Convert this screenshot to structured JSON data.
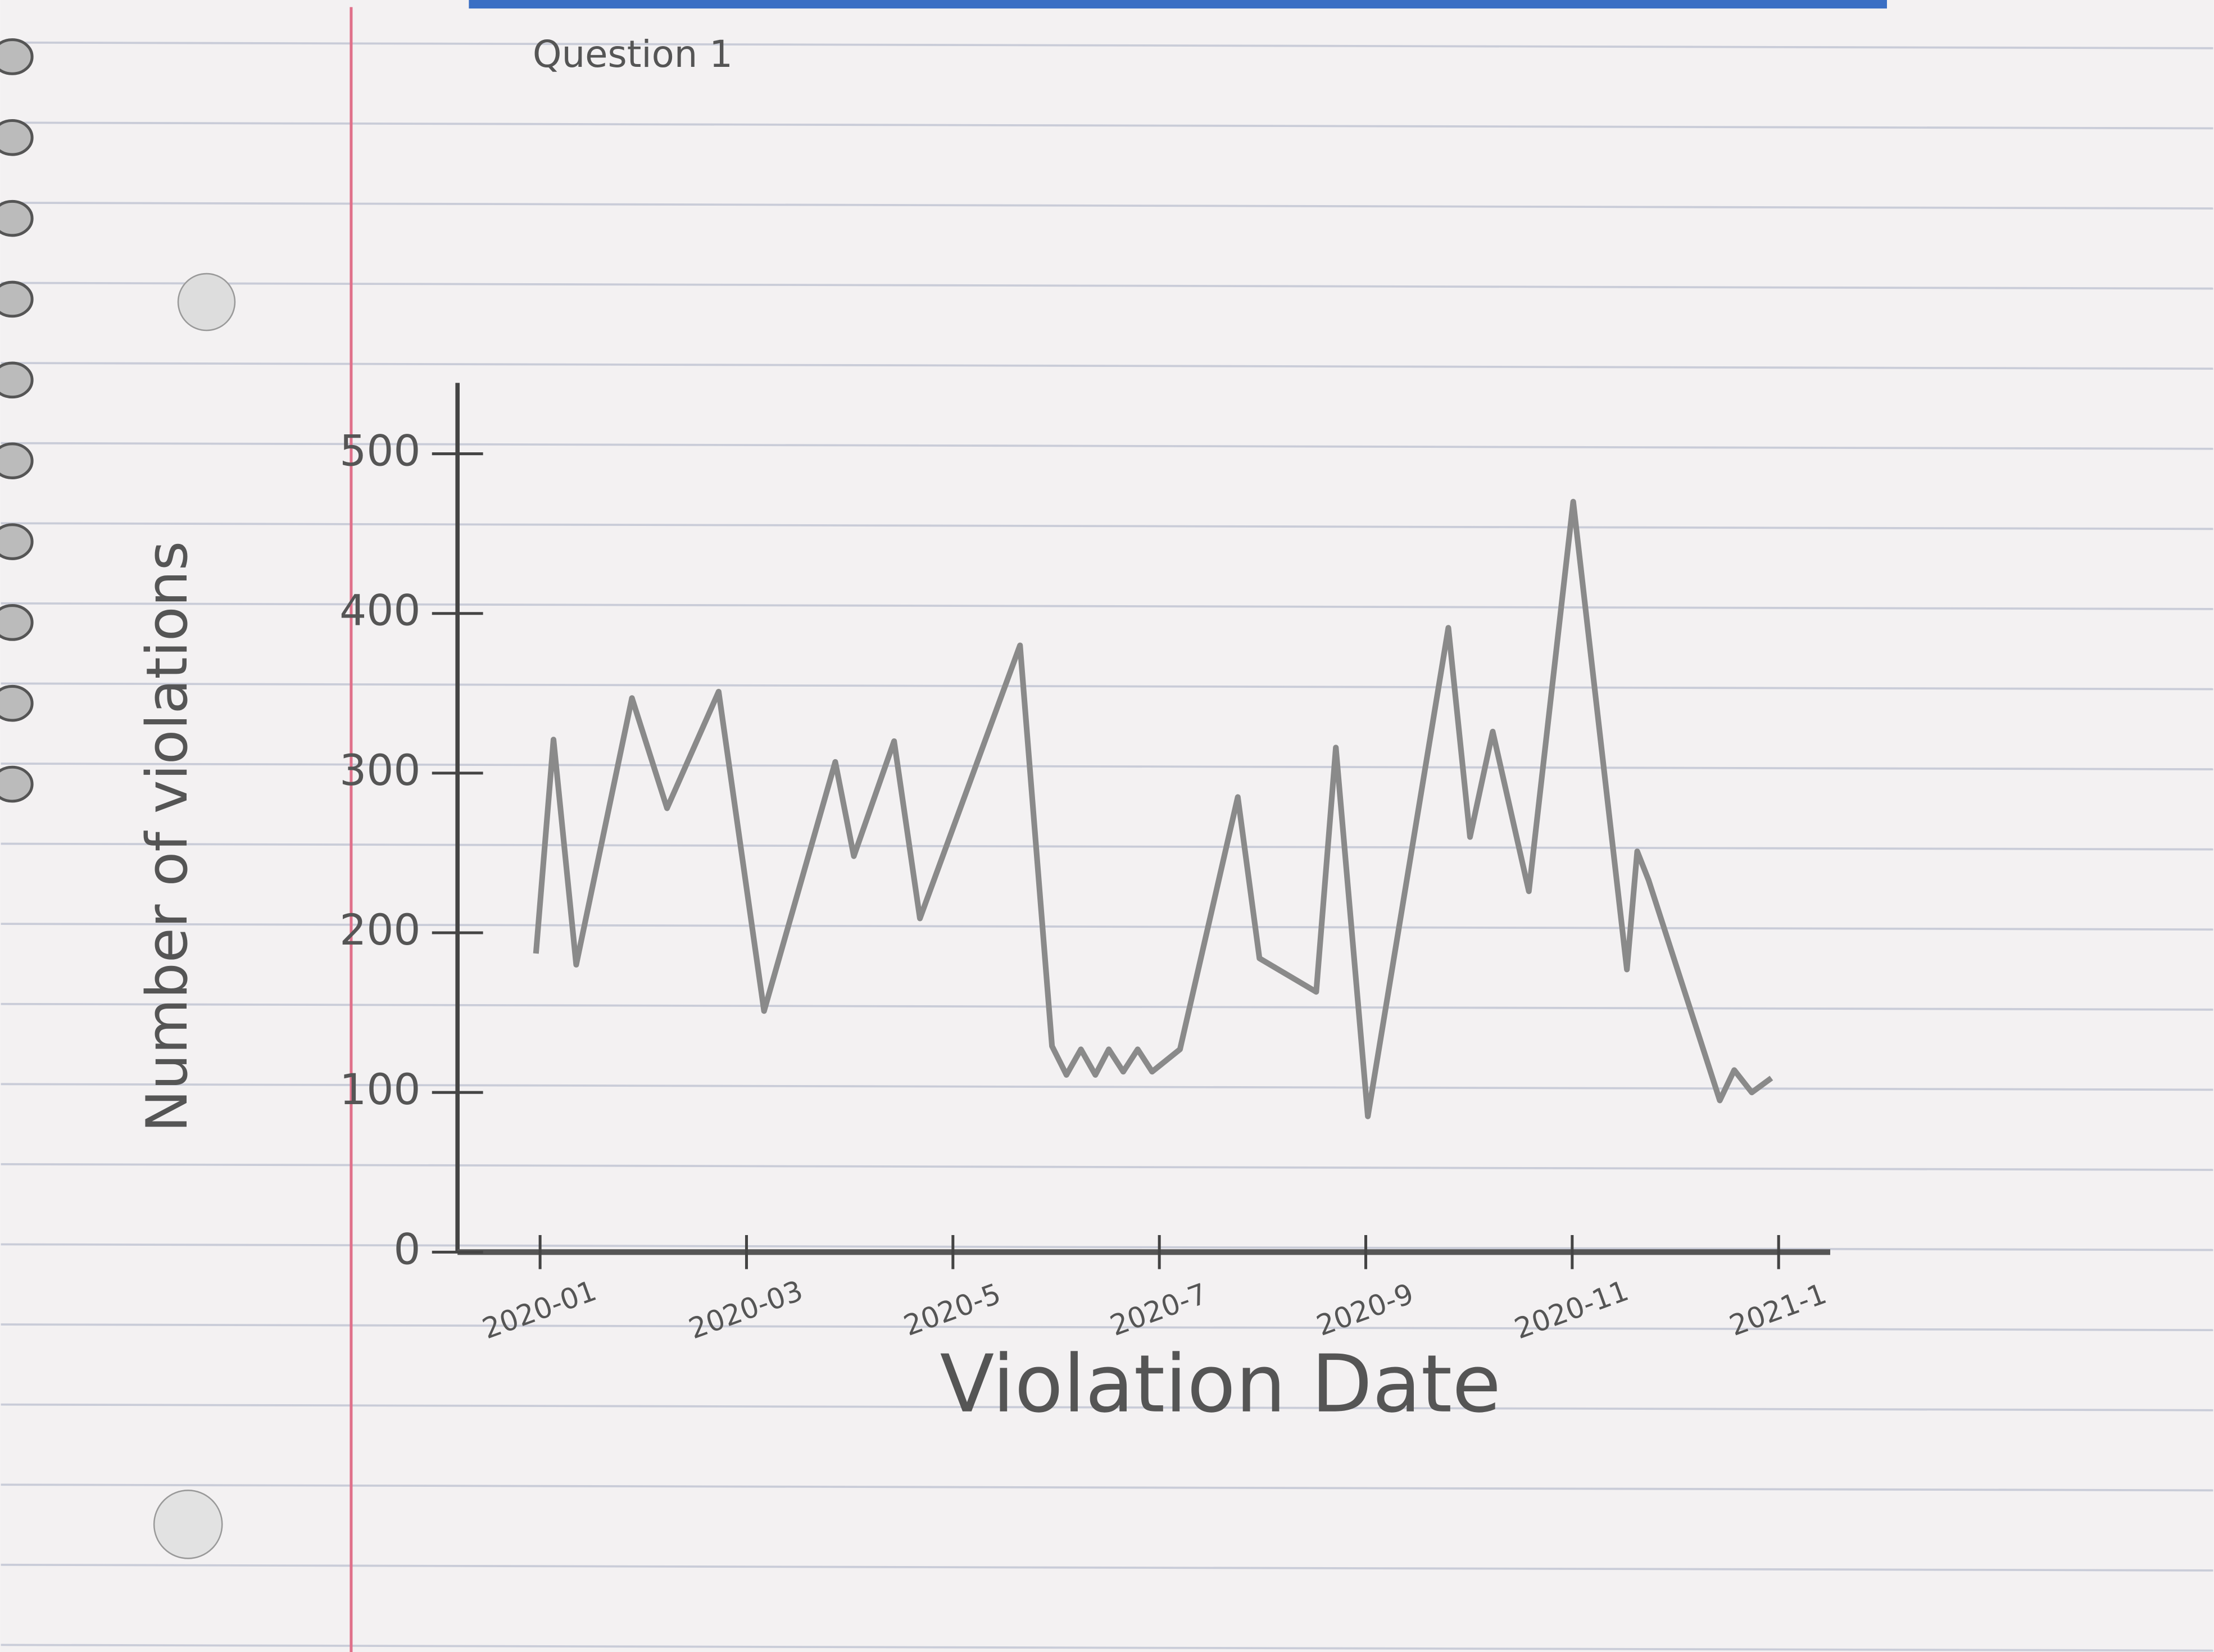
{
  "header": {
    "title": "Question 1"
  },
  "chart_data": {
    "type": "line",
    "x_label": "Violation Date",
    "y_label": "Number of violations",
    "xlim": [
      0.2,
      13.5
    ],
    "xticks": [
      {
        "value": 1,
        "label": "2020-01"
      },
      {
        "value": 3,
        "label": "2020-03"
      },
      {
        "value": 5,
        "label": "2020-5"
      },
      {
        "value": 7,
        "label": "2020-7"
      },
      {
        "value": 9,
        "label": "2020-9"
      },
      {
        "value": 11,
        "label": "2020-11"
      },
      {
        "value": 13,
        "label": "2021-1"
      }
    ],
    "ylim": [
      0,
      500
    ],
    "yticks": [
      0,
      100,
      200,
      300,
      400,
      500
    ],
    "series": [
      {
        "color": "#8a8a8a",
        "x": [
          0.96,
          1.13,
          1.35,
          1.89,
          2.23,
          2.73,
          3.17,
          3.86,
          4.04,
          4.43,
          4.68,
          5.65,
          5.96,
          6.1,
          6.24,
          6.38,
          6.51,
          6.65,
          6.79,
          6.93,
          7.2,
          7.76,
          7.97,
          8.52,
          8.71,
          9.02,
          9.8,
          10.01,
          10.23,
          10.58,
          11.01,
          11.53,
          11.63,
          11.74,
          12.43,
          12.57,
          12.74,
          12.93
        ],
        "values": [
          187,
          321,
          180,
          347,
          278,
          351,
          151,
          307,
          248,
          320,
          209,
          380,
          129,
          111,
          127,
          111,
          127,
          113,
          127,
          113,
          127,
          285,
          184,
          163,
          316,
          85,
          391,
          260,
          326,
          226,
          470,
          177,
          251,
          233,
          95,
          114,
          100,
          109
        ]
      }
    ]
  }
}
